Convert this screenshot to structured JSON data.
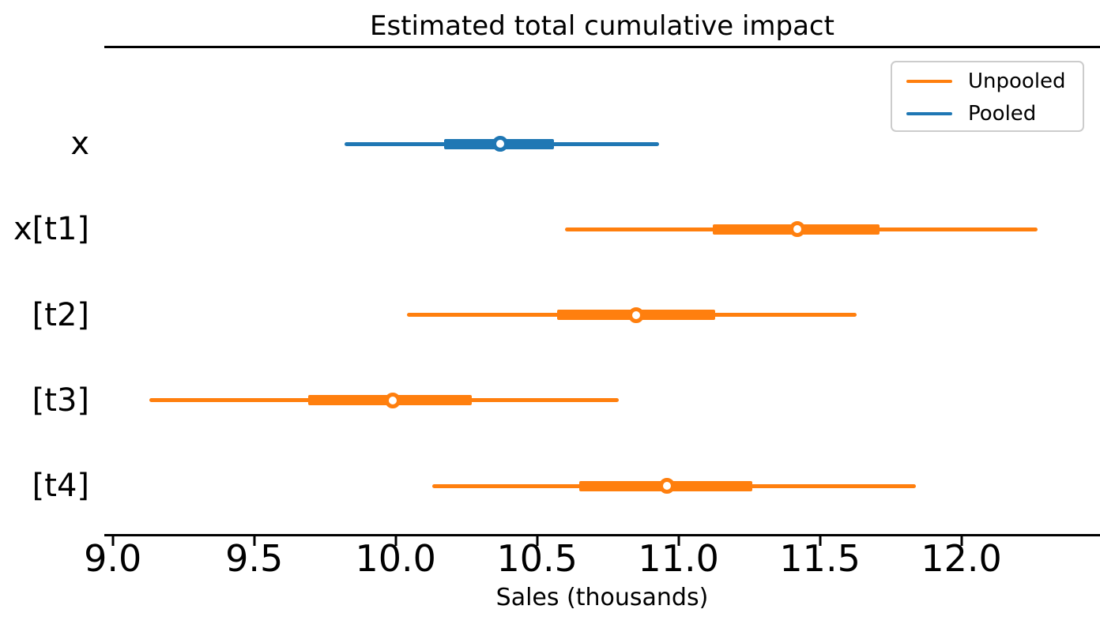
{
  "figure": {
    "title": "Estimated total cumulative impact",
    "xlabel": "Sales (thousands)"
  },
  "legend": {
    "position": "upper right",
    "items": [
      {
        "label": "Unpooled",
        "color": "#ff7f0e"
      },
      {
        "label": "Pooled",
        "color": "#1f77b4"
      }
    ]
  },
  "colors": {
    "unpooled": "#ff7f0e",
    "pooled": "#1f77b4",
    "spine": "#000000",
    "marker_fill": "#ffffff",
    "legend_border": "#cccccc"
  },
  "chart_data": {
    "type": "forest",
    "title": "Estimated total cumulative impact",
    "xlabel": "Sales (thousands)",
    "ylabel": "",
    "xlim": [
      8.97,
      12.49
    ],
    "xticks": [
      9.0,
      9.5,
      10.0,
      10.5,
      11.0,
      11.5,
      12.0
    ],
    "xtick_labels": [
      "9.0",
      "9.5",
      "10.0",
      "10.5",
      "11.0",
      "11.5",
      "12.0"
    ],
    "grid": false,
    "legend_position": "upper right",
    "rows": [
      {
        "label": "x",
        "series": "Pooled",
        "color": "#1f77b4",
        "median": 10.37,
        "interval_inner": [
          10.17,
          10.56
        ],
        "interval_outer": [
          9.82,
          10.93
        ]
      },
      {
        "label": "x[t1]",
        "series": "Unpooled",
        "color": "#ff7f0e",
        "median": 11.42,
        "interval_inner": [
          11.12,
          11.71
        ],
        "interval_outer": [
          10.6,
          12.27
        ]
      },
      {
        "label": "[t2]",
        "series": "Unpooled",
        "color": "#ff7f0e",
        "median": 10.85,
        "interval_inner": [
          10.57,
          11.13
        ],
        "interval_outer": [
          10.04,
          11.63
        ]
      },
      {
        "label": "[t3]",
        "series": "Unpooled",
        "color": "#ff7f0e",
        "median": 9.99,
        "interval_inner": [
          9.69,
          10.27
        ],
        "interval_outer": [
          9.13,
          10.79
        ]
      },
      {
        "label": "[t4]",
        "series": "Unpooled",
        "color": "#ff7f0e",
        "median": 10.96,
        "interval_inner": [
          10.65,
          11.26
        ],
        "interval_outer": [
          10.13,
          11.84
        ]
      }
    ]
  }
}
